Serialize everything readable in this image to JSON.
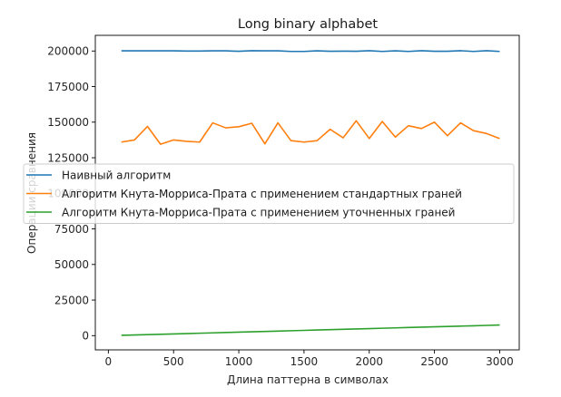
{
  "chart_data": {
    "type": "line",
    "title": "Long binary alphabet",
    "xlabel": "Длина паттерна в символах",
    "ylabel": "Операции сравнения",
    "xlim": [
      -100,
      3150
    ],
    "ylim": [
      -10000,
      211000
    ],
    "x_ticks": [
      0,
      500,
      1000,
      1500,
      2000,
      2500,
      3000
    ],
    "y_ticks": [
      0,
      25000,
      50000,
      75000,
      100000,
      125000,
      150000,
      175000,
      200000
    ],
    "x": [
      100,
      200,
      300,
      400,
      500,
      600,
      700,
      800,
      900,
      1000,
      1100,
      1200,
      1300,
      1400,
      1500,
      1600,
      1700,
      1800,
      1900,
      2000,
      2100,
      2200,
      2300,
      2400,
      2500,
      2600,
      2700,
      2800,
      2900,
      3000
    ],
    "series": [
      {
        "name": "Наивный алгоритм",
        "color": "#1f77b4",
        "values": [
          200100,
          200100,
          200100,
          200100,
          200100,
          200000,
          200000,
          200100,
          200100,
          199800,
          200200,
          200100,
          200100,
          199700,
          199700,
          200100,
          199800,
          199900,
          199800,
          200200,
          199700,
          200100,
          199700,
          200200,
          199800,
          199800,
          200200,
          199700,
          200200,
          199700
        ]
      },
      {
        "name": "Алгоритм Кнута-Морриса-Прата с применением стандартных граней",
        "color": "#ff7f0e",
        "values": [
          136000,
          137500,
          147000,
          134500,
          137500,
          136500,
          136000,
          149500,
          146000,
          146800,
          149200,
          134800,
          149500,
          137000,
          136000,
          137000,
          145000,
          139000,
          151000,
          138500,
          150500,
          139500,
          147500,
          145500,
          150000,
          140500,
          149500,
          144000,
          142000,
          138500
        ]
      },
      {
        "name": "Алгоритм Кнута-Морриса-Прата с применением уточненных граней",
        "color": "#2ca02c",
        "values": [
          200,
          450,
          700,
          950,
          1200,
          1450,
          1700,
          1950,
          2200,
          2450,
          2700,
          2950,
          3200,
          3450,
          3700,
          3950,
          4200,
          4450,
          4700,
          4950,
          5200,
          5450,
          5700,
          5950,
          6200,
          6450,
          6700,
          6950,
          7200,
          7450
        ]
      }
    ],
    "legend_position": "center-left",
    "grid": false
  }
}
